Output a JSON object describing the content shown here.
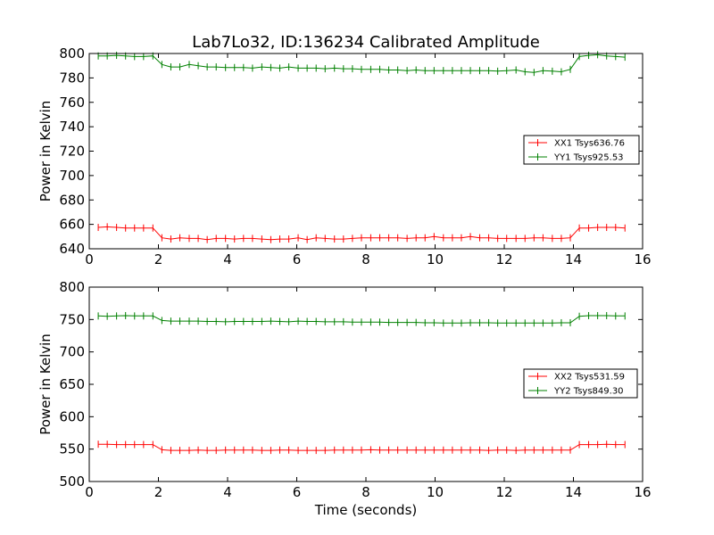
{
  "chart_data": [
    {
      "type": "line",
      "title": "Lab7Lo32, ID:136234 Calibrated Amplitude",
      "xlabel": "",
      "ylabel": "Power in Kelvin",
      "xlim": [
        0,
        16
      ],
      "ylim": [
        640,
        800
      ],
      "xticks": [
        0,
        2,
        4,
        6,
        8,
        10,
        12,
        14,
        16
      ],
      "yticks": [
        640,
        660,
        680,
        700,
        720,
        740,
        760,
        780,
        800
      ],
      "grid": false,
      "legend_position": "center-right",
      "x": [
        0.26,
        0.52,
        0.79,
        1.05,
        1.31,
        1.57,
        1.84,
        2.1,
        2.36,
        2.62,
        2.89,
        3.15,
        3.41,
        3.67,
        3.94,
        4.2,
        4.46,
        4.72,
        4.99,
        5.25,
        5.51,
        5.77,
        6.04,
        6.3,
        6.56,
        6.82,
        7.09,
        7.35,
        7.61,
        7.87,
        8.14,
        8.4,
        8.66,
        8.92,
        9.19,
        9.45,
        9.71,
        9.97,
        10.24,
        10.5,
        10.76,
        11.02,
        11.29,
        11.55,
        11.81,
        12.07,
        12.34,
        12.6,
        12.86,
        13.12,
        13.39,
        13.65,
        13.91,
        14.17,
        14.44,
        14.7,
        14.96,
        15.22,
        15.49
      ],
      "series": [
        {
          "name": "XX1 Tsys636.76",
          "color": "#ff0000",
          "values": [
            657.5,
            658.0,
            657.5,
            657.0,
            657.0,
            657.0,
            657.0,
            649.0,
            648.0,
            649.0,
            648.5,
            648.5,
            647.5,
            648.5,
            648.5,
            648.0,
            648.5,
            648.5,
            648.0,
            647.5,
            648.0,
            648.0,
            649.0,
            647.5,
            649.0,
            648.5,
            648.0,
            648.0,
            648.5,
            649.0,
            649.0,
            649.0,
            649.0,
            649.0,
            648.5,
            649.0,
            649.0,
            650.0,
            649.0,
            649.0,
            649.0,
            650.0,
            649.0,
            649.0,
            648.5,
            648.5,
            648.5,
            648.5,
            649.0,
            649.0,
            648.5,
            648.5,
            649.0,
            657.0,
            657.0,
            657.5,
            657.5,
            657.5,
            657.0
          ]
        },
        {
          "name": "YY1 Tsys925.53",
          "color": "#008000",
          "values": [
            798.0,
            798.0,
            798.5,
            798.0,
            797.5,
            797.5,
            798.0,
            791.0,
            789.0,
            789.0,
            791.0,
            790.0,
            789.0,
            789.0,
            788.5,
            788.5,
            788.5,
            788.0,
            789.0,
            788.5,
            788.0,
            789.0,
            788.0,
            788.0,
            788.0,
            787.5,
            788.0,
            787.5,
            787.5,
            787.0,
            787.0,
            787.0,
            786.5,
            786.5,
            786.0,
            786.5,
            786.0,
            786.0,
            786.0,
            786.0,
            786.0,
            786.0,
            786.0,
            786.0,
            785.5,
            786.0,
            786.5,
            785.0,
            784.5,
            786.0,
            785.5,
            785.0,
            787.0,
            797.5,
            798.5,
            799.0,
            798.0,
            797.5,
            797.0
          ]
        }
      ]
    },
    {
      "type": "line",
      "title": "",
      "xlabel": "Time (seconds)",
      "ylabel": "Power in Kelvin",
      "xlim": [
        0,
        16
      ],
      "ylim": [
        500,
        800
      ],
      "xticks": [
        0,
        2,
        4,
        6,
        8,
        10,
        12,
        14,
        16
      ],
      "yticks": [
        500,
        550,
        600,
        650,
        700,
        750,
        800
      ],
      "grid": false,
      "legend_position": "center-right",
      "x": [
        0.26,
        0.52,
        0.79,
        1.05,
        1.31,
        1.57,
        1.84,
        2.1,
        2.36,
        2.62,
        2.89,
        3.15,
        3.41,
        3.67,
        3.94,
        4.2,
        4.46,
        4.72,
        4.99,
        5.25,
        5.51,
        5.77,
        6.04,
        6.3,
        6.56,
        6.82,
        7.09,
        7.35,
        7.61,
        7.87,
        8.14,
        8.4,
        8.66,
        8.92,
        9.19,
        9.45,
        9.71,
        9.97,
        10.24,
        10.5,
        10.76,
        11.02,
        11.29,
        11.55,
        11.81,
        12.07,
        12.34,
        12.6,
        12.86,
        13.12,
        13.39,
        13.65,
        13.91,
        14.17,
        14.44,
        14.7,
        14.96,
        15.22,
        15.49
      ],
      "series": [
        {
          "name": "XX2 Tsys531.59",
          "color": "#ff0000",
          "values": [
            557.5,
            557.5,
            557.0,
            557.0,
            557.0,
            557.0,
            557.0,
            549.0,
            548.0,
            548.0,
            548.0,
            548.5,
            548.0,
            548.0,
            548.5,
            548.5,
            548.5,
            548.5,
            548.0,
            548.0,
            548.5,
            548.5,
            548.0,
            548.0,
            548.0,
            548.0,
            548.5,
            548.5,
            548.5,
            548.5,
            549.0,
            548.5,
            548.5,
            548.5,
            548.5,
            548.5,
            548.5,
            548.5,
            548.5,
            548.5,
            548.5,
            548.5,
            548.5,
            548.0,
            548.5,
            548.5,
            548.0,
            548.5,
            548.5,
            548.5,
            548.5,
            548.5,
            548.5,
            557.0,
            557.0,
            557.0,
            557.5,
            557.0,
            557.0
          ]
        },
        {
          "name": "YY2 Tsys849.30",
          "color": "#008000",
          "values": [
            755.5,
            755.0,
            755.5,
            756.0,
            755.5,
            755.5,
            755.5,
            748.5,
            747.5,
            747.5,
            747.5,
            747.5,
            747.0,
            747.0,
            746.5,
            747.0,
            747.0,
            747.0,
            747.0,
            747.5,
            747.0,
            746.5,
            747.5,
            747.0,
            747.0,
            746.5,
            746.5,
            746.5,
            746.0,
            746.0,
            746.0,
            746.0,
            745.5,
            745.5,
            745.5,
            745.5,
            745.0,
            745.0,
            744.5,
            744.5,
            744.5,
            745.0,
            745.0,
            745.0,
            744.5,
            744.5,
            744.5,
            744.5,
            744.5,
            744.5,
            744.5,
            745.0,
            745.0,
            755.0,
            756.0,
            756.0,
            756.0,
            755.5,
            755.5
          ]
        }
      ]
    }
  ]
}
